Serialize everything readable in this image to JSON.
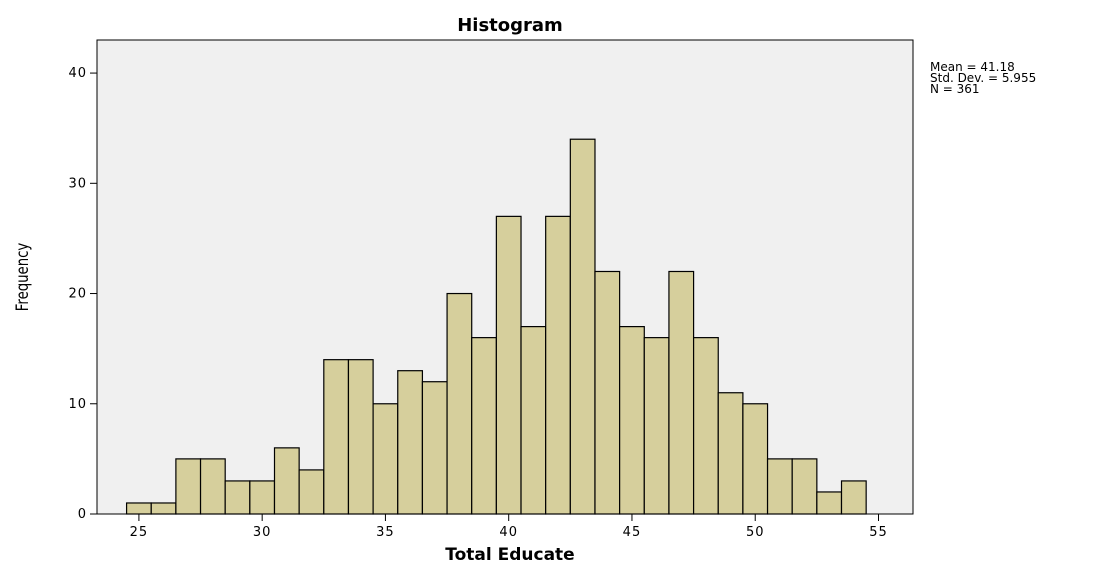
{
  "chart_data": {
    "type": "bar",
    "title": "Histogram",
    "xlabel": "Total Educate",
    "ylabel": "Frequency",
    "xlim": [
      23.3,
      56.4
    ],
    "ylim": [
      0,
      43
    ],
    "x_ticks": [
      25,
      30,
      35,
      40,
      45,
      50,
      55
    ],
    "y_ticks": [
      0,
      10,
      20,
      30,
      40
    ],
    "grid": false,
    "bin_width": 1,
    "bins": [
      {
        "x": 25,
        "value": 1
      },
      {
        "x": 26,
        "value": 1
      },
      {
        "x": 27,
        "value": 5
      },
      {
        "x": 28,
        "value": 5
      },
      {
        "x": 29,
        "value": 3
      },
      {
        "x": 30,
        "value": 3
      },
      {
        "x": 31,
        "value": 6
      },
      {
        "x": 32,
        "value": 4
      },
      {
        "x": 33,
        "value": 14
      },
      {
        "x": 34,
        "value": 14
      },
      {
        "x": 35,
        "value": 10
      },
      {
        "x": 36,
        "value": 13
      },
      {
        "x": 37,
        "value": 12
      },
      {
        "x": 38,
        "value": 20
      },
      {
        "x": 39,
        "value": 16
      },
      {
        "x": 40,
        "value": 27
      },
      {
        "x": 41,
        "value": 17
      },
      {
        "x": 42,
        "value": 27
      },
      {
        "x": 43,
        "value": 34
      },
      {
        "x": 44,
        "value": 22
      },
      {
        "x": 45,
        "value": 17
      },
      {
        "x": 46,
        "value": 16
      },
      {
        "x": 47,
        "value": 22
      },
      {
        "x": 48,
        "value": 16
      },
      {
        "x": 49,
        "value": 11
      },
      {
        "x": 50,
        "value": 10
      },
      {
        "x": 51,
        "value": 5
      },
      {
        "x": 52,
        "value": 5
      },
      {
        "x": 53,
        "value": 2
      },
      {
        "x": 54,
        "value": 3
      }
    ],
    "annotations": [
      "Mean = 41.18",
      "Std. Dev. = 5.955",
      "N = 361"
    ],
    "colors": {
      "bar_fill": "#d6cf9c",
      "bar_stroke": "#000000",
      "plot_background": "#f0f0f0"
    }
  }
}
